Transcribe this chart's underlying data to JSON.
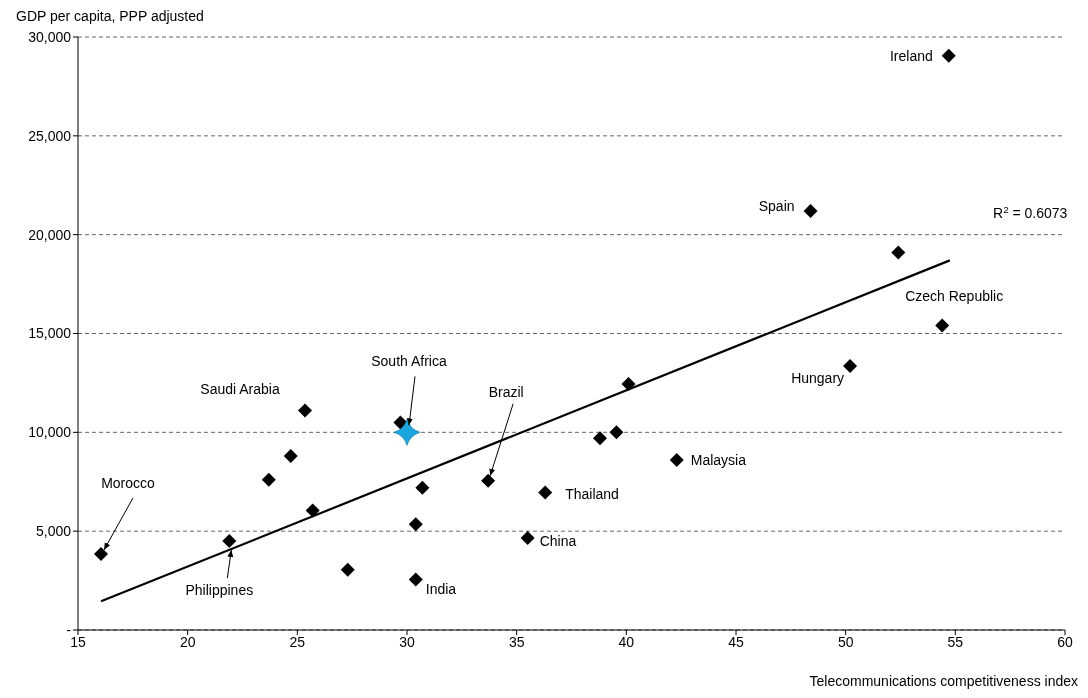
{
  "chart_data": {
    "type": "scatter",
    "xlabel": "Telecommunications competitiveness index",
    "ylabel": "GDP per capita, PPP adjusted",
    "xlim": [
      15,
      60
    ],
    "xticks": [
      15,
      20,
      25,
      30,
      35,
      40,
      45,
      50,
      55,
      60
    ],
    "ylim": [
      0,
      30000
    ],
    "yticks": [
      {
        "value": 0,
        "label": "-"
      },
      {
        "value": 5000,
        "label": "5,000"
      },
      {
        "value": 10000,
        "label": "10,000"
      },
      {
        "value": 15000,
        "label": "15,000"
      },
      {
        "value": 20000,
        "label": "20,000"
      },
      {
        "value": 25000,
        "label": "25,000"
      },
      {
        "value": 30000,
        "label": "30,000"
      }
    ],
    "grid": "y",
    "marker": "diamond",
    "series": [
      {
        "type": "scatter",
        "color": "#000000",
        "x": [
          16.05,
          21.9,
          25.35,
          24.7,
          23.7,
          25.7,
          27.3,
          29.7,
          30.7,
          30.4,
          30.4,
          40.1,
          33.7,
          38.8,
          39.55,
          42.3,
          36.3,
          35.5,
          54.7,
          48.4,
          52.4,
          54.4,
          50.2
        ],
        "values": [
          3850,
          4500,
          11100,
          8800,
          7600,
          6050,
          3050,
          10500,
          7200,
          5350,
          2550,
          12450,
          7550,
          9700,
          10000,
          8600,
          6950,
          4650,
          29050,
          21200,
          19100,
          15400,
          13350
        ]
      },
      {
        "type": "scatter",
        "marker": "star",
        "color": "#1aa7e0",
        "x": [
          30.0
        ],
        "values": [
          10000
        ]
      },
      {
        "type": "line",
        "color": "#000000",
        "marker": "none",
        "x": [
          16.05,
          54.75
        ],
        "values": [
          1450,
          18700
        ]
      }
    ],
    "annotations": [
      {
        "text": "Ireland",
        "x": 54.7,
        "y": 29050
      },
      {
        "text": "Spain",
        "x": 48.4,
        "y": 21200
      },
      {
        "text": "Czech Republic",
        "x": 54.4,
        "y": 15400
      },
      {
        "text": "Hungary",
        "x": 50.2,
        "y": 13350
      },
      {
        "text": "Malaysia",
        "x": 42.3,
        "y": 8600
      },
      {
        "text": "Thailand",
        "x": 36.3,
        "y": 6950
      },
      {
        "text": "China",
        "x": 35.5,
        "y": 4650
      },
      {
        "text": "India",
        "x": 30.4,
        "y": 2550
      },
      {
        "text": "Saudi Arabia",
        "x": 25.35,
        "y": 11100
      },
      {
        "text": "South Africa",
        "x": 30.0,
        "y": 10000
      },
      {
        "text": "Brazil",
        "x": 33.7,
        "y": 7550
      },
      {
        "text": "Morocco",
        "x": 16.05,
        "y": 3850
      },
      {
        "text": "Philippines",
        "x": 21.9,
        "y": 4500
      },
      "R$^{2}$ = 0.6073"
    ]
  }
}
